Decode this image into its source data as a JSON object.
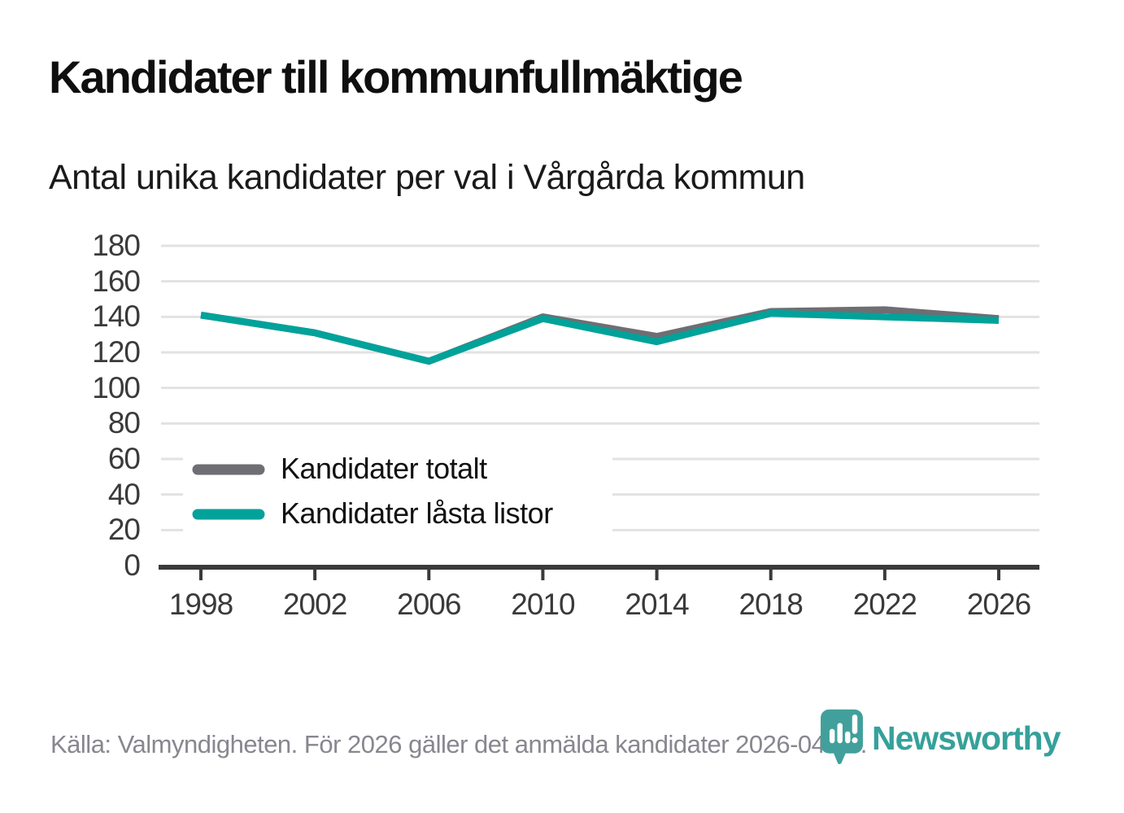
{
  "header": {
    "title": "Kandidater till kommunfullmäktige",
    "subtitle": "Antal unika kandidater per val i Vårgårda kommun"
  },
  "footer": {
    "source": "Källa: Valmyndigheten. För 2026 gäller det anmälda kandidater 2026-04-10.",
    "logo_text": "Newsworthy",
    "logo_icon": "newsworthy-pin-barchart-icon"
  },
  "colors": {
    "series_total": "#6E6E73",
    "series_locked": "#00A29A",
    "grid": "#E2E2E2",
    "axis": "#3A3A3A",
    "tick_text": "#3A3A3A",
    "logo_teal": "#41A09B",
    "footer_text": "#87878F"
  },
  "chart_data": {
    "type": "line",
    "title": "Kandidater till kommunfullmäktige",
    "subtitle": "Antal unika kandidater per val i Vårgårda kommun",
    "x": [
      1998,
      2002,
      2006,
      2010,
      2014,
      2018,
      2022,
      2026
    ],
    "series": [
      {
        "name": "Kandidater totalt",
        "color": "#6E6E73",
        "values": [
          141,
          131,
          115,
          140,
          129,
          143,
          144,
          139
        ]
      },
      {
        "name": "Kandidater låsta listor",
        "color": "#00A29A",
        "values": [
          141,
          131,
          115,
          139,
          126,
          142,
          140,
          138
        ]
      }
    ],
    "ylim": [
      0,
      180
    ],
    "yticks": [
      0,
      20,
      40,
      60,
      80,
      100,
      120,
      140,
      160,
      180
    ],
    "grid": "horizontal",
    "legend_position": "inside-bottom-left",
    "xlabel": "",
    "ylabel": ""
  }
}
